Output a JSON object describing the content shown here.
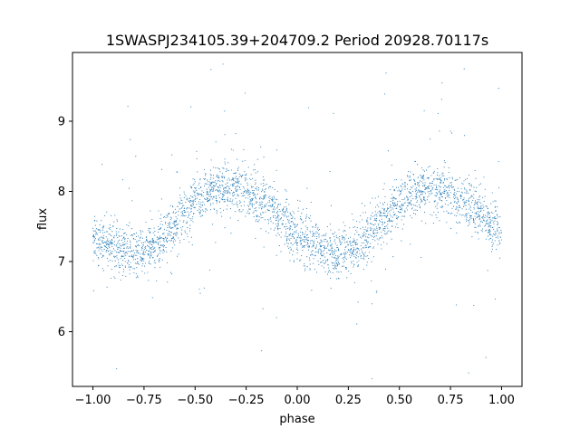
{
  "chart_data": {
    "type": "scatter",
    "title": "1SWASPJ234105.39+204709.2 Period 20928.70117s",
    "xlabel": "phase",
    "ylabel": "flux",
    "xlim": [
      -1.1,
      1.1
    ],
    "ylim": [
      5.22,
      9.98
    ],
    "grid": false,
    "x_ticks": [
      -1.0,
      -0.75,
      -0.5,
      -0.25,
      0.0,
      0.25,
      0.5,
      0.75,
      1.0
    ],
    "x_tick_labels": [
      "−1.00",
      "−0.75",
      "−0.50",
      "−0.25",
      "0.00",
      "0.25",
      "0.50",
      "0.75",
      "1.00"
    ],
    "y_ticks": [
      6,
      7,
      8,
      9
    ],
    "y_tick_labels": [
      "6",
      "7",
      "8",
      "9"
    ],
    "series": [
      {
        "color": "#1f77b4",
        "marker": "small dot",
        "trend_points": [
          {
            "x": -1.0,
            "y": 7.35
          },
          {
            "x": -0.9,
            "y": 7.18
          },
          {
            "x": -0.8,
            "y": 7.12
          },
          {
            "x": -0.7,
            "y": 7.22
          },
          {
            "x": -0.6,
            "y": 7.52
          },
          {
            "x": -0.5,
            "y": 7.85
          },
          {
            "x": -0.4,
            "y": 8.02
          },
          {
            "x": -0.3,
            "y": 8.05
          },
          {
            "x": -0.2,
            "y": 7.9
          },
          {
            "x": -0.1,
            "y": 7.68
          },
          {
            "x": 0.0,
            "y": 7.38
          },
          {
            "x": 0.1,
            "y": 7.18
          },
          {
            "x": 0.2,
            "y": 7.1
          },
          {
            "x": 0.3,
            "y": 7.22
          },
          {
            "x": 0.4,
            "y": 7.52
          },
          {
            "x": 0.5,
            "y": 7.85
          },
          {
            "x": 0.6,
            "y": 8.02
          },
          {
            "x": 0.7,
            "y": 8.05
          },
          {
            "x": 0.8,
            "y": 7.9
          },
          {
            "x": 0.9,
            "y": 7.68
          },
          {
            "x": 1.0,
            "y": 7.38
          }
        ],
        "scatter_sd": 0.17,
        "outlier_range": [
          5.4,
          9.8
        ]
      }
    ]
  }
}
